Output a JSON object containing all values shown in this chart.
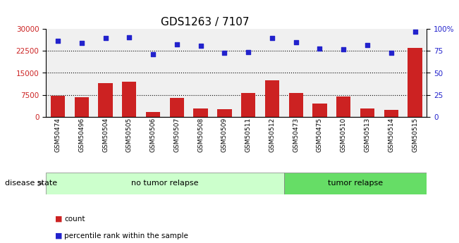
{
  "title": "GDS1263 / 7107",
  "categories": [
    "GSM50474",
    "GSM50496",
    "GSM50504",
    "GSM50505",
    "GSM50506",
    "GSM50507",
    "GSM50508",
    "GSM50509",
    "GSM50511",
    "GSM50512",
    "GSM50473",
    "GSM50475",
    "GSM50510",
    "GSM50513",
    "GSM50514",
    "GSM50515"
  ],
  "counts": [
    7200,
    6700,
    11500,
    12000,
    1500,
    6500,
    2800,
    2500,
    8000,
    12500,
    8000,
    4500,
    6800,
    2700,
    2200,
    23500
  ],
  "percentiles": [
    87,
    84,
    90,
    91,
    71,
    83,
    81,
    73,
    74,
    90,
    85,
    78,
    77,
    82,
    73,
    97
  ],
  "bar_color": "#cc2222",
  "dot_color": "#2222cc",
  "group1_label": "no tumor relapse",
  "group2_label": "tumor relapse",
  "group1_count": 10,
  "group2_count": 6,
  "disease_state_label": "disease state",
  "ylim_left": [
    0,
    30000
  ],
  "ylim_right": [
    0,
    100
  ],
  "yticks_left": [
    0,
    7500,
    15000,
    22500,
    30000
  ],
  "yticks_right": [
    0,
    25,
    50,
    75,
    100
  ],
  "grid_values": [
    7500,
    15000,
    22500
  ],
  "legend_count": "count",
  "legend_percentile": "percentile rank within the sample",
  "bg_plot": "#f0f0f0",
  "bg_group1": "#ccffcc",
  "bg_group2": "#66dd66",
  "title_fontsize": 11,
  "axis_fontsize": 8,
  "tick_fontsize": 7.5
}
